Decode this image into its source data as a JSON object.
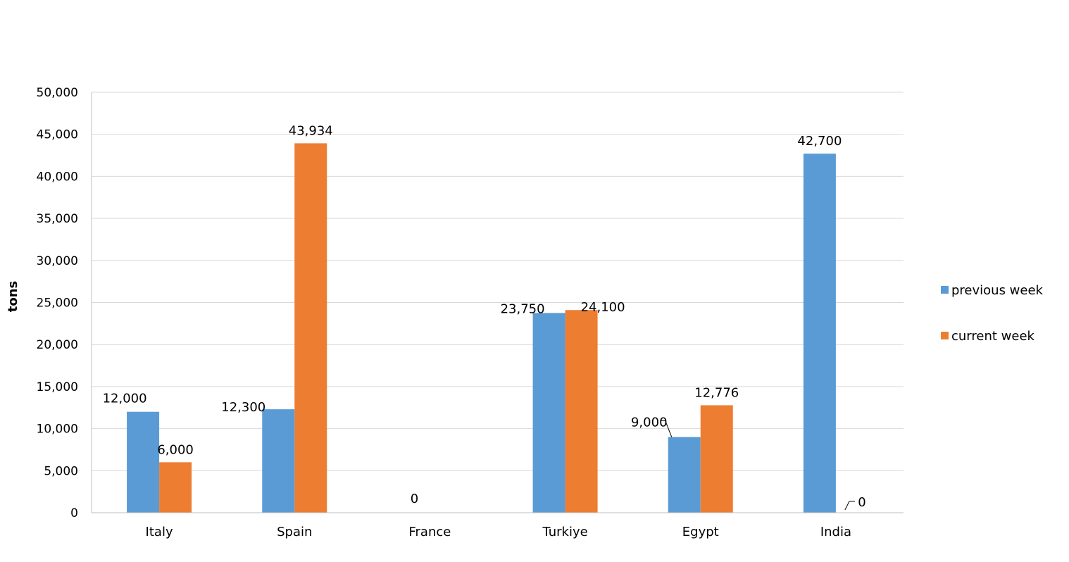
{
  "chart_data": {
    "type": "bar",
    "title": "",
    "xlabel": "",
    "ylabel": "tons",
    "ylim": [
      0,
      50000
    ],
    "ytick_step": 5000,
    "ytick_labels": [
      "0",
      "5,000",
      "10,000",
      "15,000",
      "20,000",
      "25,000",
      "30,000",
      "35,000",
      "40,000",
      "45,000",
      "50,000"
    ],
    "grid": true,
    "legend_position": "right",
    "categories": [
      "Italy",
      "Spain",
      "France",
      "Turkiye",
      "Egypt",
      "India"
    ],
    "series": [
      {
        "name": "previous week",
        "color": "#5B9BD5",
        "values": [
          12000,
          12300,
          null,
          23750,
          9000,
          42700
        ],
        "labels": [
          "12,000",
          "12,300",
          "",
          "23,750",
          "9,000",
          "42,700"
        ]
      },
      {
        "name": "current week",
        "color": "#ED7D31",
        "values": [
          6000,
          43934,
          null,
          24100,
          12776,
          0
        ],
        "labels": [
          "6,000",
          "43,934",
          "",
          "24,100",
          "12,776",
          "0"
        ]
      }
    ],
    "extra_labels": [
      {
        "category": "France",
        "text": "0"
      }
    ]
  }
}
